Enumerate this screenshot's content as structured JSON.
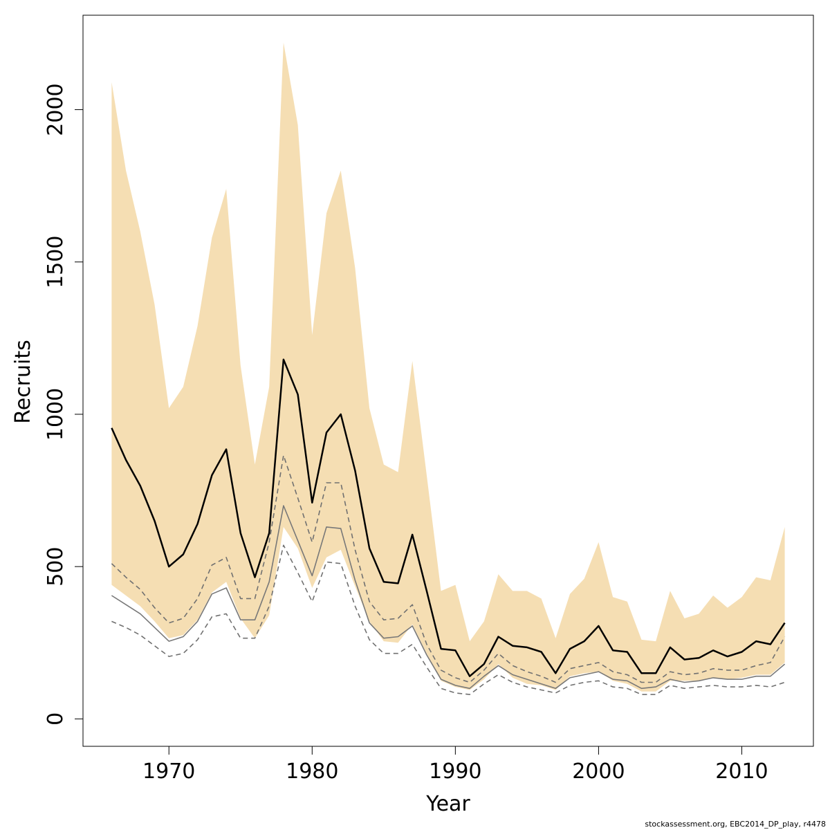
{
  "chart_data": {
    "type": "line",
    "xlabel": "Year",
    "ylabel": "Recruits",
    "xlim": [
      1964,
      2015
    ],
    "ylim": [
      -90,
      2310
    ],
    "x_ticks": [
      1970,
      1980,
      1990,
      2000,
      2010
    ],
    "y_ticks": [
      0,
      500,
      1000,
      1500,
      2000
    ],
    "x": [
      1966,
      1967,
      1968,
      1969,
      1970,
      1971,
      1972,
      1973,
      1974,
      1975,
      1976,
      1977,
      1978,
      1979,
      1980,
      1981,
      1982,
      1983,
      1984,
      1985,
      1986,
      1987,
      1988,
      1989,
      1990,
      1991,
      1992,
      1993,
      1994,
      1995,
      1996,
      1997,
      1998,
      1999,
      2000,
      2001,
      2002,
      2003,
      2004,
      2005,
      2006,
      2007,
      2008,
      2009,
      2010,
      2011,
      2012,
      2013
    ],
    "band_upper": [
      2090,
      1800,
      1600,
      1360,
      1020,
      1090,
      1290,
      1580,
      1740,
      1160,
      835,
      1090,
      2220,
      1950,
      1260,
      1660,
      1800,
      1480,
      1020,
      835,
      810,
      1175,
      800,
      420,
      440,
      255,
      320,
      475,
      420,
      420,
      395,
      265,
      410,
      460,
      580,
      400,
      385,
      260,
      255,
      420,
      330,
      345,
      405,
      365,
      400,
      465,
      455,
      630
    ],
    "band_lower": [
      440,
      405,
      370,
      320,
      265,
      275,
      325,
      415,
      450,
      330,
      265,
      340,
      630,
      560,
      430,
      530,
      555,
      435,
      320,
      255,
      250,
      310,
      215,
      125,
      105,
      95,
      130,
      180,
      135,
      115,
      110,
      95,
      140,
      150,
      155,
      125,
      115,
      90,
      90,
      125,
      125,
      125,
      135,
      130,
      135,
      145,
      145,
      185
    ],
    "series": [
      {
        "values": [
          955,
          850,
          765,
          650,
          500,
          540,
          640,
          800,
          885,
          610,
          465,
          610,
          1180,
          1065,
          710,
          940,
          1000,
          815,
          560,
          450,
          445,
          605,
          420,
          230,
          225,
          140,
          180,
          270,
          240,
          235,
          220,
          150,
          230,
          255,
          305,
          225,
          220,
          150,
          150,
          235,
          195,
          200,
          225,
          205,
          220,
          255,
          245,
          315
        ]
      },
      {
        "values": [
          510,
          465,
          425,
          365,
          315,
          330,
          395,
          505,
          530,
          395,
          395,
          580,
          865,
          725,
          580,
          775,
          775,
          555,
          385,
          325,
          330,
          375,
          245,
          160,
          135,
          120,
          160,
          215,
          175,
          155,
          140,
          120,
          165,
          175,
          185,
          155,
          145,
          120,
          120,
          155,
          145,
          150,
          165,
          160,
          160,
          175,
          185,
          270
        ]
      },
      {
        "values": [
          405,
          375,
          345,
          300,
          255,
          270,
          320,
          410,
          430,
          325,
          325,
          450,
          700,
          585,
          470,
          630,
          625,
          455,
          315,
          265,
          270,
          305,
          210,
          130,
          110,
          100,
          140,
          175,
          145,
          130,
          115,
          100,
          135,
          145,
          155,
          130,
          125,
          100,
          105,
          130,
          120,
          125,
          135,
          130,
          130,
          140,
          140,
          180
        ]
      },
      {
        "values": [
          320,
          300,
          275,
          240,
          205,
          215,
          260,
          335,
          345,
          265,
          265,
          370,
          570,
          480,
          385,
          515,
          510,
          370,
          260,
          215,
          215,
          245,
          170,
          100,
          85,
          80,
          115,
          145,
          120,
          105,
          95,
          85,
          110,
          120,
          125,
          105,
          100,
          80,
          80,
          110,
          100,
          105,
          110,
          105,
          105,
          110,
          105,
          120
        ]
      }
    ],
    "colors": {
      "band": "#f5deb3",
      "median": "#000000",
      "dashed": "#707070",
      "gray": "#787878",
      "frame": "#000000"
    }
  },
  "footer": {
    "note": "stockassessment.org, EBC2014_DP_play, r4478"
  }
}
